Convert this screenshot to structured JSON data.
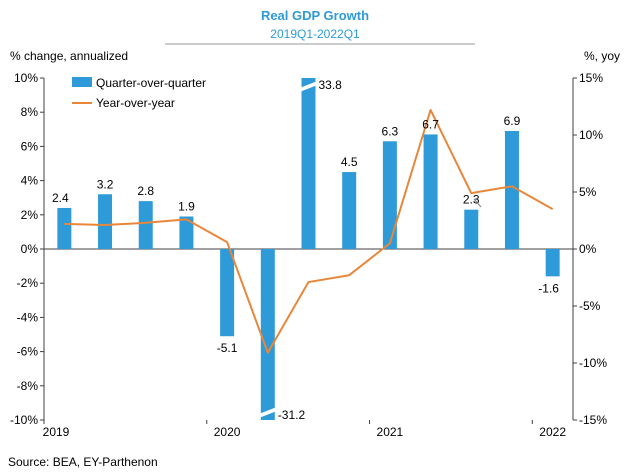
{
  "chart_data": {
    "type": "bar",
    "title": "Real GDP Growth",
    "subtitle": "2019Q1-2022Q1",
    "left_axis_title": "% change, annualized",
    "right_axis_title": "%, yoy",
    "source": "Source: BEA, EY-Parthenon",
    "left_ylim": [
      -10,
      10
    ],
    "right_ylim": [
      -15,
      15
    ],
    "left_ticks": [
      "10%",
      "8%",
      "6%",
      "4%",
      "2%",
      "0%",
      "-2%",
      "-4%",
      "-6%",
      "-8%",
      "-10%"
    ],
    "right_ticks": [
      "15%",
      "10%",
      "5%",
      "0%",
      "-5%",
      "-10%",
      "-15%"
    ],
    "year_labels": [
      "2019",
      "2020",
      "2021",
      "2022"
    ],
    "quarters": [
      "2019Q1",
      "2019Q2",
      "2019Q3",
      "2019Q4",
      "2020Q1",
      "2020Q2",
      "2020Q3",
      "2020Q4",
      "2021Q1",
      "2021Q2",
      "2021Q3",
      "2021Q4",
      "2022Q1"
    ],
    "series": [
      {
        "name": "Quarter-over-quarter",
        "type": "bar",
        "axis": "left",
        "color": "#2e9ad8",
        "values": [
          2.4,
          3.2,
          2.8,
          1.9,
          -5.1,
          -31.2,
          33.8,
          4.5,
          6.3,
          6.7,
          2.3,
          6.9,
          -1.6
        ],
        "labels": [
          "2.4",
          "3.2",
          "2.8",
          "1.9",
          "-5.1",
          "-31.2",
          "33.8",
          "4.5",
          "6.3",
          "6.7",
          "2.3",
          "6.9",
          "-1.6"
        ]
      },
      {
        "name": "Year-over-year",
        "type": "line",
        "axis": "right",
        "color": "#e8873a",
        "values": [
          2.2,
          2.1,
          2.3,
          2.6,
          0.6,
          -9.1,
          -2.9,
          -2.3,
          0.5,
          12.2,
          4.9,
          5.5,
          3.5
        ]
      }
    ]
  }
}
